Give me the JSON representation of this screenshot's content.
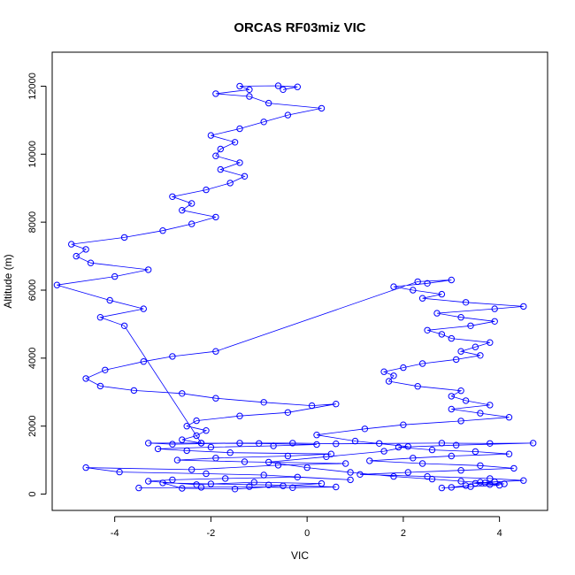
{
  "chart_data": {
    "type": "line",
    "title": "ORCAS RF03miz VIC",
    "xlabel": "VIC",
    "ylabel": "Altitude (m)",
    "xlim": [
      -5.3,
      5.0
    ],
    "ylim": [
      -480,
      13000
    ],
    "xticks": [
      -4,
      -2,
      0,
      2,
      4
    ],
    "yticks": [
      0,
      2000,
      4000,
      6000,
      8000,
      10000,
      12000
    ],
    "xtick_labels": [
      "-4",
      "-2",
      "0",
      "2",
      "4"
    ],
    "ytick_labels": [
      "0",
      "2000",
      "4000",
      "6000",
      "8000",
      "10000",
      "12000"
    ],
    "grid": false,
    "legend": "none",
    "color": "#0000ff",
    "markers": "open-circle with connecting line",
    "series": [
      {
        "values": [
          [
            -3.5,
            180
          ],
          [
            -2.2,
            200
          ],
          [
            -1.2,
            220
          ],
          [
            -0.3,
            190
          ],
          [
            0.6,
            210
          ],
          [
            -0.8,
            270
          ],
          [
            -2.0,
            300
          ],
          [
            -3.0,
            330
          ],
          [
            -2.6,
            170
          ],
          [
            -1.5,
            150
          ],
          [
            -0.5,
            240
          ],
          [
            0.3,
            310
          ],
          [
            -1.1,
            350
          ],
          [
            -2.3,
            280
          ],
          [
            -3.3,
            380
          ],
          [
            -2.8,
            420
          ],
          [
            -1.7,
            460
          ],
          [
            -0.2,
            500
          ],
          [
            0.9,
            420
          ],
          [
            -0.9,
            560
          ],
          [
            -2.1,
            600
          ],
          [
            -3.9,
            650
          ],
          [
            -4.6,
            780
          ],
          [
            -2.4,
            720
          ],
          [
            -0.6,
            850
          ],
          [
            0.8,
            900
          ],
          [
            -1.3,
            950
          ],
          [
            -2.7,
            1000
          ],
          [
            -1.9,
            1060
          ],
          [
            -0.4,
            1120
          ],
          [
            0.5,
            1180
          ],
          [
            -1.6,
            1220
          ],
          [
            -2.5,
            1280
          ],
          [
            -3.1,
            1330
          ],
          [
            -2.0,
            1380
          ],
          [
            -0.7,
            1420
          ],
          [
            0.2,
            1460
          ],
          [
            -1.0,
            1490
          ],
          [
            -2.2,
            1500
          ],
          [
            -3.3,
            1500
          ],
          [
            -2.8,
            1470
          ],
          [
            -1.4,
            1500
          ],
          [
            -0.3,
            1500
          ],
          [
            0.6,
            1480
          ],
          [
            1.5,
            1490
          ],
          [
            2.8,
            1500
          ],
          [
            3.8,
            1490
          ],
          [
            4.7,
            1500
          ],
          [
            3.1,
            1440
          ],
          [
            1.9,
            1380
          ],
          [
            2.6,
            1300
          ],
          [
            3.5,
            1250
          ],
          [
            4.2,
            1180
          ],
          [
            3.0,
            1120
          ],
          [
            2.2,
            1060
          ],
          [
            1.3,
            980
          ],
          [
            2.4,
            900
          ],
          [
            3.6,
            840
          ],
          [
            4.3,
            760
          ],
          [
            3.2,
            700
          ],
          [
            2.1,
            640
          ],
          [
            1.1,
            580
          ],
          [
            2.5,
            520
          ],
          [
            3.8,
            460
          ],
          [
            4.5,
            400
          ],
          [
            3.9,
            360
          ],
          [
            3.5,
            320
          ],
          [
            3.8,
            280
          ],
          [
            4.1,
            300
          ],
          [
            3.6,
            350
          ],
          [
            3.3,
            250
          ],
          [
            3.0,
            200
          ],
          [
            2.8,
            180
          ],
          [
            3.4,
            220
          ],
          [
            4.0,
            260
          ],
          [
            3.7,
            330
          ],
          [
            3.2,
            380
          ],
          [
            2.6,
            440
          ],
          [
            1.8,
            520
          ],
          [
            0.9,
            640
          ],
          [
            0.0,
            780
          ],
          [
            -0.8,
            940
          ],
          [
            0.4,
            1100
          ],
          [
            1.6,
            1260
          ],
          [
            2.1,
            1400
          ],
          [
            1.0,
            1560
          ],
          [
            0.2,
            1740
          ],
          [
            1.2,
            1920
          ],
          [
            2.0,
            2040
          ],
          [
            3.2,
            2150
          ],
          [
            4.2,
            2260
          ],
          [
            3.6,
            2380
          ],
          [
            3.0,
            2500
          ],
          [
            3.8,
            2620
          ],
          [
            3.3,
            2750
          ],
          [
            3.0,
            2880
          ],
          [
            3.2,
            3040
          ],
          [
            2.3,
            3170
          ],
          [
            1.7,
            3320
          ],
          [
            1.8,
            3480
          ],
          [
            1.6,
            3600
          ],
          [
            2.0,
            3720
          ],
          [
            2.4,
            3840
          ],
          [
            3.1,
            3960
          ],
          [
            3.6,
            4080
          ],
          [
            3.2,
            4200
          ],
          [
            3.5,
            4330
          ],
          [
            3.8,
            4460
          ],
          [
            3.0,
            4580
          ],
          [
            2.8,
            4700
          ],
          [
            2.5,
            4820
          ],
          [
            3.4,
            4950
          ],
          [
            3.9,
            5080
          ],
          [
            3.2,
            5200
          ],
          [
            2.7,
            5320
          ],
          [
            3.9,
            5450
          ],
          [
            4.5,
            5520
          ],
          [
            3.3,
            5640
          ],
          [
            2.4,
            5760
          ],
          [
            2.8,
            5880
          ],
          [
            2.2,
            6000
          ],
          [
            1.8,
            6100
          ],
          [
            2.5,
            6200
          ],
          [
            3.0,
            6300
          ],
          [
            2.3,
            6250
          ],
          [
            -1.9,
            4200
          ],
          [
            -2.8,
            4050
          ],
          [
            -3.4,
            3900
          ],
          [
            -4.2,
            3650
          ],
          [
            -4.6,
            3400
          ],
          [
            -4.3,
            3180
          ],
          [
            -3.6,
            3050
          ],
          [
            -2.6,
            2960
          ],
          [
            -1.9,
            2820
          ],
          [
            -0.9,
            2700
          ],
          [
            0.1,
            2600
          ],
          [
            0.6,
            2650
          ],
          [
            -0.4,
            2400
          ],
          [
            -1.4,
            2300
          ],
          [
            -2.3,
            2160
          ],
          [
            -2.5,
            2000
          ],
          [
            -2.1,
            1870
          ],
          [
            -2.3,
            1720
          ],
          [
            -2.6,
            1600
          ],
          [
            -2.2,
            1500
          ],
          [
            -3.8,
            4950
          ],
          [
            -4.3,
            5200
          ],
          [
            -3.4,
            5450
          ],
          [
            -4.1,
            5700
          ],
          [
            -5.2,
            6150
          ],
          [
            -4.0,
            6400
          ],
          [
            -3.3,
            6600
          ],
          [
            -4.5,
            6800
          ],
          [
            -4.8,
            7000
          ],
          [
            -4.6,
            7200
          ],
          [
            -4.9,
            7350
          ],
          [
            -3.8,
            7550
          ],
          [
            -3.0,
            7750
          ],
          [
            -2.4,
            7950
          ],
          [
            -1.9,
            8150
          ],
          [
            -2.6,
            8350
          ],
          [
            -2.4,
            8550
          ],
          [
            -2.8,
            8750
          ],
          [
            -2.1,
            8950
          ],
          [
            -1.6,
            9150
          ],
          [
            -1.3,
            9350
          ],
          [
            -1.8,
            9550
          ],
          [
            -1.4,
            9750
          ],
          [
            -1.9,
            9950
          ],
          [
            -1.8,
            10150
          ],
          [
            -1.5,
            10350
          ],
          [
            -2.0,
            10550
          ],
          [
            -1.4,
            10750
          ],
          [
            -0.9,
            10950
          ],
          [
            -0.4,
            11150
          ],
          [
            0.3,
            11350
          ],
          [
            -0.8,
            11500
          ],
          [
            -1.2,
            11700
          ],
          [
            -1.9,
            11780
          ],
          [
            -1.2,
            11900
          ],
          [
            -1.4,
            12000
          ],
          [
            -0.6,
            12010
          ],
          [
            -0.2,
            11980
          ],
          [
            -0.5,
            11900
          ]
        ]
      }
    ]
  }
}
